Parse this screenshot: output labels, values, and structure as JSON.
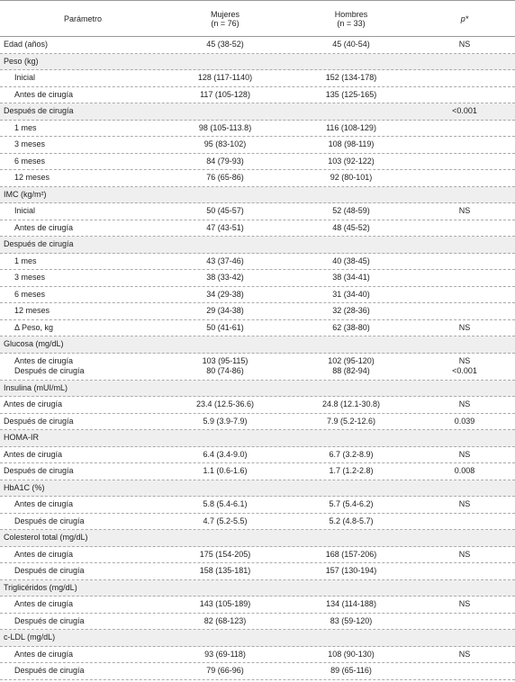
{
  "header": {
    "parametro": "Parámetro",
    "mujeres": "Mujeres",
    "mujeres_n": "(n = 76)",
    "hombres": "Hombres",
    "hombres_n": "(n = 33)",
    "p": "p*"
  },
  "rows": [
    {
      "label": "Edad (años)",
      "mujeres": "45 (38-52)",
      "hombres": "45 (40-54)",
      "p": "NS"
    },
    {
      "section": "Peso (kg)"
    },
    {
      "label": "Inicial",
      "mujeres": "128 (117-1140)",
      "hombres": "152 (134-178)"
    },
    {
      "label": "Antes de cirugía",
      "mujeres": "117 (105-128)",
      "hombres": "135 (125-165)"
    },
    {
      "section": "Después de cirugía",
      "p": "<0.001"
    },
    {
      "label": "1 mes",
      "mujeres": "98 (105-113.8)",
      "hombres": "116 (108-129)"
    },
    {
      "label": "3 meses",
      "mujeres": "95 (83-102)",
      "hombres": "108 (98-119)"
    },
    {
      "label": "6 meses",
      "mujeres": "84 (79-93)",
      "hombres": "103 (92-122)"
    },
    {
      "label": "12 meses",
      "mujeres": "76 (65-86)",
      "hombres": "92 (80-101)"
    },
    {
      "section": "IMC (kg/m²)"
    },
    {
      "label": "Inicial",
      "mujeres": "50 (45-57)",
      "hombres": "52 (48-59)",
      "p": "NS"
    },
    {
      "label": "Antes de cirugía",
      "mujeres": "47 (43-51)",
      "hombres": "48 (45-52)"
    },
    {
      "section": "Después de cirugía"
    },
    {
      "label": "1 mes",
      "mujeres": "43 (37-46)",
      "hombres": "40 (38-45)"
    },
    {
      "label": "3 meses",
      "mujeres": "38 (33-42)",
      "hombres": "38 (34-41)"
    },
    {
      "label": "6 meses",
      "mujeres": "34 (29-38)",
      "hombres": "31 (34-40)"
    },
    {
      "label": "12 meses",
      "mujeres": "29 (34-38)",
      "hombres": "32 (28-36)"
    },
    {
      "label": "Δ Peso, kg",
      "mujeres": "50 (41-61)",
      "hombres": "62 (38-80)",
      "p": "NS"
    },
    {
      "section": "Glucosa (mg/dL)"
    },
    {
      "label": [
        "Antes de cirugía",
        "Después de cirugía"
      ],
      "mujeres": [
        "103 (95-115)",
        "80 (74-86)"
      ],
      "hombres": [
        "102 (95-120)",
        "88 (82-94)"
      ],
      "p": [
        "NS",
        "<0.001"
      ]
    },
    {
      "section": "Insulina (mUI/mL)"
    },
    {
      "label": "Antes de cirugía",
      "mujeres": "23.4 (12.5-36.6)",
      "hombres": "24.8 (12.1-30.8)",
      "p": "NS"
    },
    {
      "label": "Después de cirugía",
      "mujeres": "5.9 (3.9-7.9)",
      "hombres": "7.9 (5.2-12.6)",
      "p": "0.039"
    },
    {
      "section": "HOMA-IR"
    },
    {
      "label": "Antes de cirugía",
      "mujeres": "6.4 (3.4-9.0)",
      "hombres": "6.7 (3.2-8.9)",
      "p": "NS"
    },
    {
      "label": "Después de cirugía",
      "mujeres": "1.1 (0.6-1.6)",
      "hombres": "1.7 (1.2-2.8)",
      "p": "0.008"
    },
    {
      "section": "HbA1C (%)"
    },
    {
      "label": "Antes de cirugía",
      "mujeres": "5.8 (5.4-6.1)",
      "hombres": "5.7 (5.4-6.2)",
      "p": "NS"
    },
    {
      "label": "Después de cirugía",
      "mujeres": "4.7 (5.2-5.5)",
      "hombres": "5.2 (4.8-5.7)"
    },
    {
      "section": "Colesterol total (mg/dL)"
    },
    {
      "label": "Antes de cirugía",
      "mujeres": "175 (154-205)",
      "hombres": "168 (157-206)",
      "p": "NS"
    },
    {
      "label": "Después de cirugía",
      "mujeres": "158 (135-181)",
      "hombres": "157 (130-194)"
    },
    {
      "section": "Triglicéridos (mg/dL)"
    },
    {
      "label": "Antes de cirugía",
      "mujeres": "143 (105-189)",
      "hombres": "134 (114-188)",
      "p": "NS"
    },
    {
      "label": "Después de cirugía",
      "mujeres": "82 (68-123)",
      "hombres": "83 (59-120)"
    },
    {
      "section": "c-LDL (mg/dL)"
    },
    {
      "label": "Antes de cirugía",
      "mujeres": "93 (69-118)",
      "hombres": "108 (90-130)",
      "p": "NS"
    },
    {
      "label": "Después de cirugía",
      "mujeres": "79 (66-96)",
      "hombres": "89 (65-116)"
    }
  ]
}
